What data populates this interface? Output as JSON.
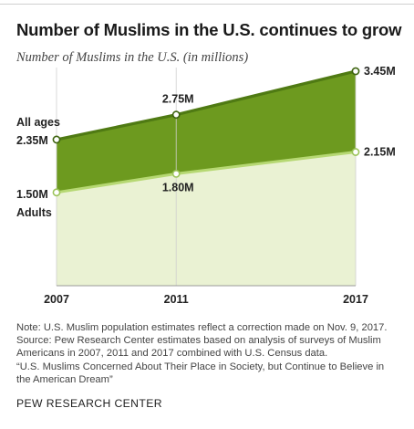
{
  "title": "Number of Muslims in the U.S. continues to grow",
  "subtitle": "Number of Muslims in the U.S. (in millions)",
  "chart_data": {
    "type": "area",
    "x": [
      2007,
      2011,
      2017
    ],
    "x_tick_labels": [
      "2007",
      "2011",
      "2017"
    ],
    "series": [
      {
        "name": "All ages",
        "values": [
          2.35,
          2.75,
          3.45
        ],
        "labels": [
          "2.35M",
          "2.75M",
          "3.45M"
        ],
        "color": "#6d9a1f",
        "line_color": "#4f7a13"
      },
      {
        "name": "Adults",
        "values": [
          1.5,
          1.8,
          2.15
        ],
        "labels": [
          "1.50M",
          "1.80M",
          "2.15M"
        ],
        "color": "#eaf2d3",
        "line_color": "#b6d873"
      }
    ],
    "ylim": [
      0,
      3.45
    ],
    "grid": "vertical lines at each year"
  },
  "notes": [
    "Note: U.S. Muslim population estimates reflect a correction made on Nov. 9, 2017.",
    "Source: Pew Research Center estimates based on analysis of surveys of Muslim",
    "Americans in 2007, 2011 and 2017 combined with U.S. Census data.",
    "“U.S. Muslims Concerned About Their Place in Society, but Continue to Believe in",
    "the American Dream”"
  ],
  "source_org": "PEW RESEARCH CENTER"
}
